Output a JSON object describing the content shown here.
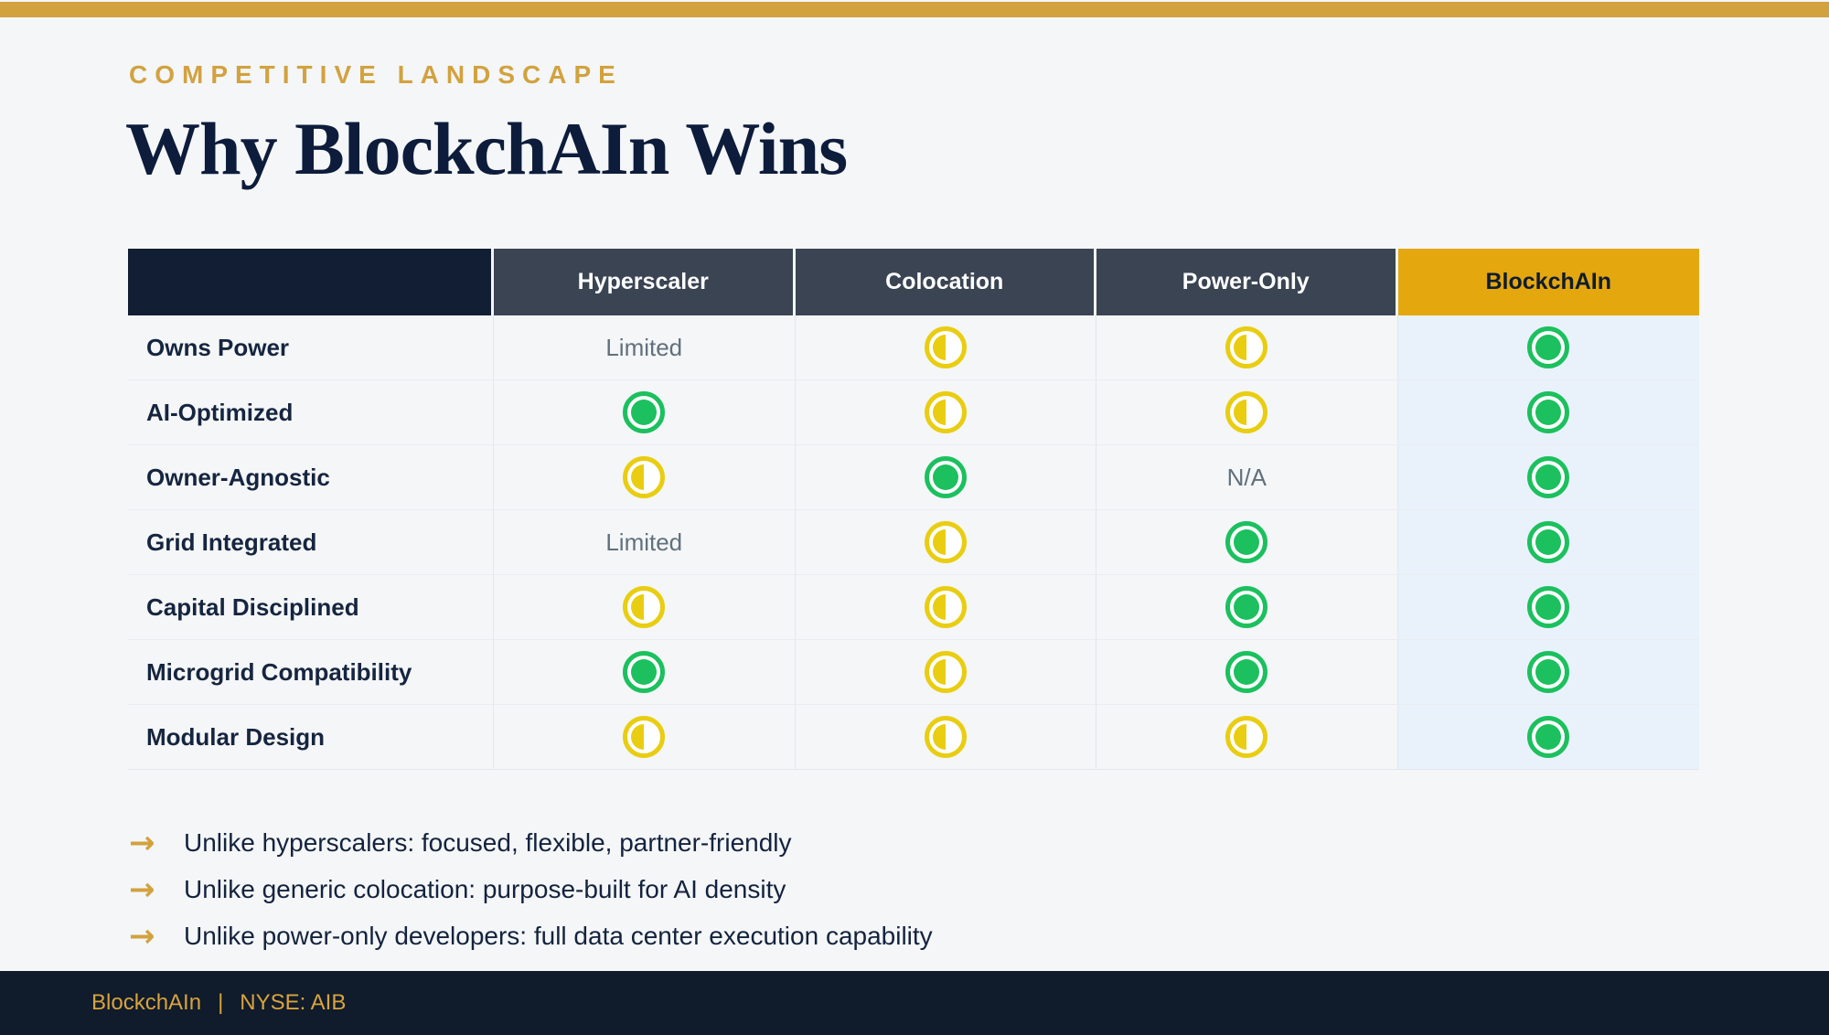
{
  "colors": {
    "page_background": "#f4f6f8",
    "accent_gold": "#d2a23e",
    "header_gold": "#e4a70d",
    "dark_navy": "#101b2c",
    "slate_header": "#3a4453",
    "full_green": "#1cc05e",
    "half_yellow": "#e9cd11",
    "highlight_column_tint": "#e9f2fb",
    "muted_text": "#626f7d"
  },
  "header": {
    "eyebrow": "COMPETITIVE LANDSCAPE",
    "title": "Why BlockchAIn Wins"
  },
  "table": {
    "columns": [
      "",
      "Hyperscaler",
      "Colocation",
      "Power-Only",
      "BlockchAIn"
    ],
    "highlight_column": "BlockchAIn",
    "cell_text": {
      "limited": "Limited",
      "na": "N/A"
    },
    "icons": {
      "full": "filled-circle-icon",
      "half": "half-filled-circle-icon"
    },
    "rows": [
      {
        "label": "Owns Power",
        "cells": [
          "limited",
          "half",
          "half",
          "full"
        ]
      },
      {
        "label": "AI-Optimized",
        "cells": [
          "full",
          "half",
          "half",
          "full"
        ]
      },
      {
        "label": "Owner-Agnostic",
        "cells": [
          "half",
          "full",
          "na",
          "full"
        ]
      },
      {
        "label": "Grid Integrated",
        "cells": [
          "limited",
          "half",
          "full",
          "full"
        ]
      },
      {
        "label": "Capital Disciplined",
        "cells": [
          "half",
          "half",
          "full",
          "full"
        ]
      },
      {
        "label": "Microgrid Compatibility",
        "cells": [
          "full",
          "half",
          "full",
          "full"
        ]
      },
      {
        "label": "Modular Design",
        "cells": [
          "half",
          "half",
          "half",
          "full"
        ]
      }
    ]
  },
  "takeaways": [
    "Unlike hyperscalers: focused, flexible, partner-friendly",
    "Unlike generic colocation: purpose-built for AI density",
    "Unlike power-only developers: full data center execution capability"
  ],
  "takeaway_arrow": "→",
  "footer": {
    "brand": "BlockchAIn",
    "separator": "|",
    "ticker": "NYSE: AIB"
  }
}
